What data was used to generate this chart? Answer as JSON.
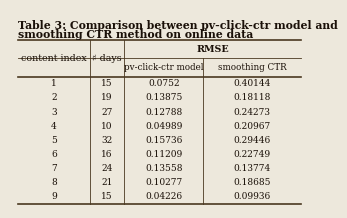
{
  "title_line1": "Table 3: Comparison between pv-click-ctr model and",
  "title_line2": "smoothing CTR method on online data",
  "col_headers": [
    "content index",
    "♯ days",
    "pv-click-ctr model",
    "smoothing CTR"
  ],
  "rmse_header": "RMSE",
  "rows": [
    [
      "1",
      "15",
      "0.0752",
      "0.40144"
    ],
    [
      "2",
      "19",
      "0.13875",
      "0.18118"
    ],
    [
      "3",
      "27",
      "0.12788",
      "0.24273"
    ],
    [
      "4",
      "10",
      "0.04989",
      "0.20967"
    ],
    [
      "5",
      "32",
      "0.15736",
      "0.29446"
    ],
    [
      "6",
      "16",
      "0.11209",
      "0.22749"
    ],
    [
      "7",
      "24",
      "0.13558",
      "0.13774"
    ],
    [
      "8",
      "21",
      "0.10277",
      "0.18685"
    ],
    [
      "9",
      "15",
      "0.04226",
      "0.09936"
    ]
  ],
  "bg_color": "#ede8dc",
  "text_color": "#1a1008",
  "line_color": "#4a3820",
  "title_fontsize": 7.8,
  "header_fontsize": 6.8,
  "subheader_fontsize": 6.3,
  "data_fontsize": 6.5
}
